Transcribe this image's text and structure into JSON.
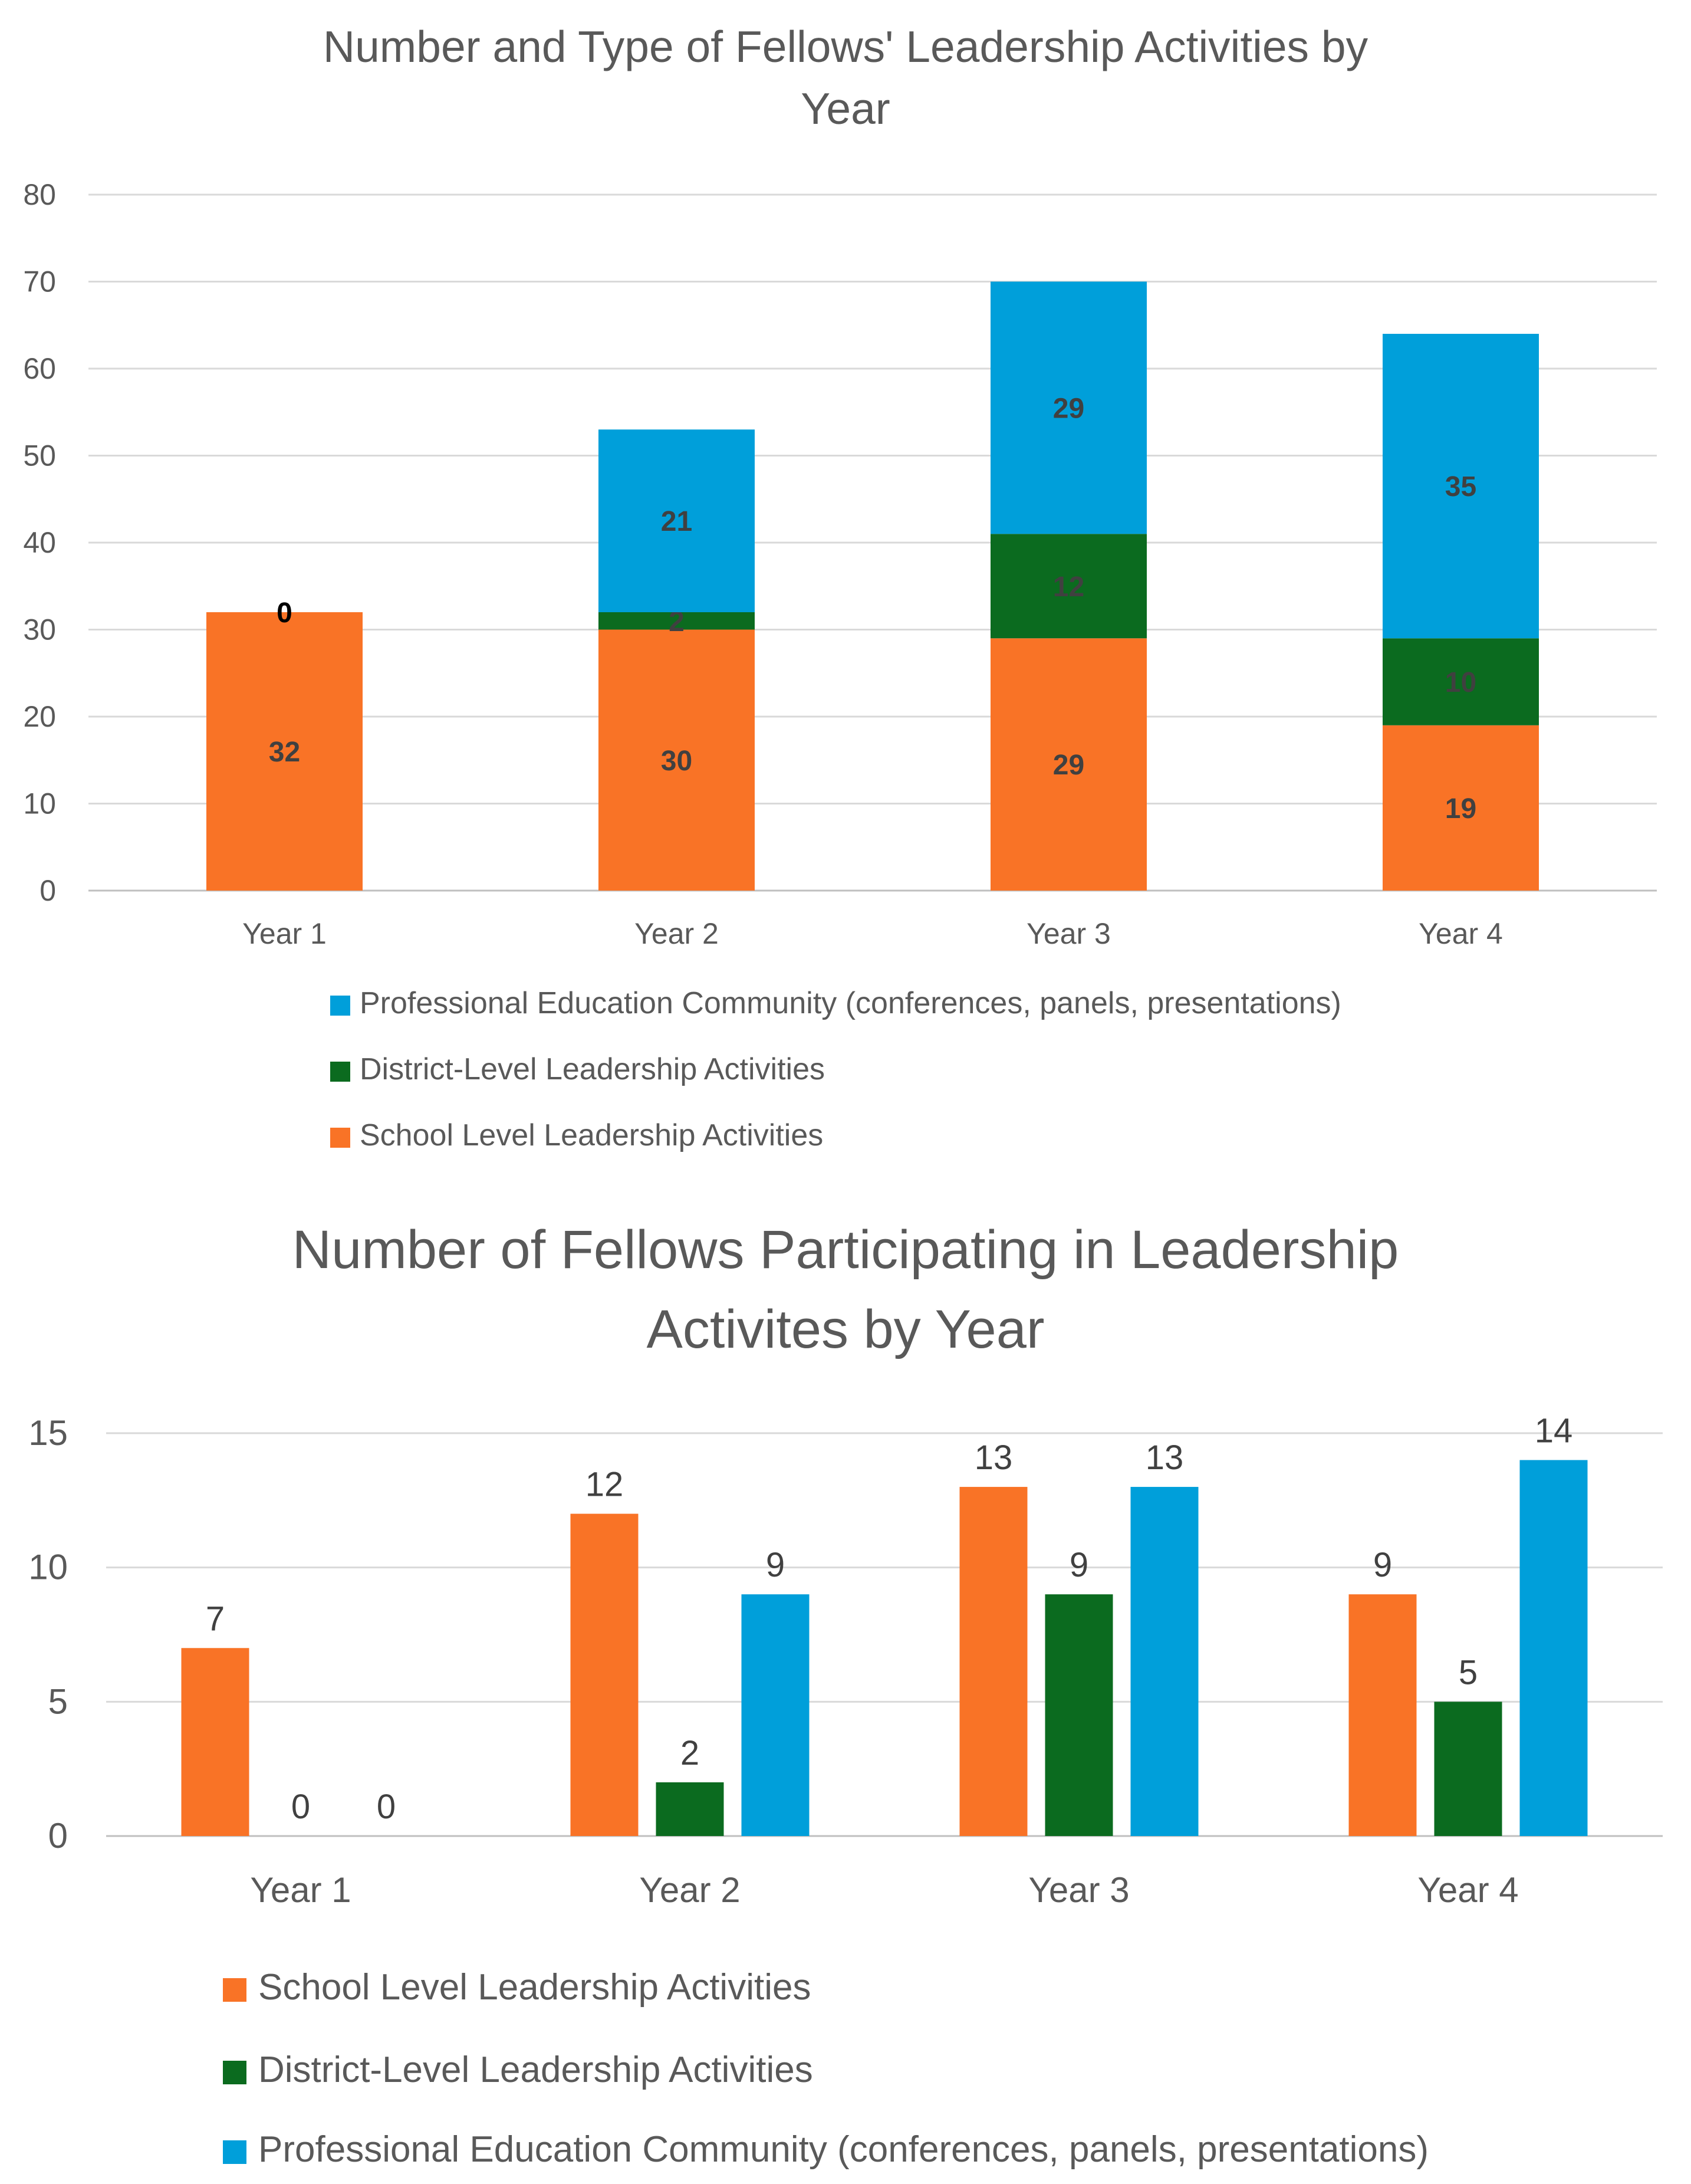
{
  "chart_data": [
    {
      "type": "bar",
      "stacked": true,
      "title": "Number and Type of Fellows' Leadership Activities by Year",
      "categories": [
        "Year 1",
        "Year 2",
        "Year 3",
        "Year 4"
      ],
      "ylim": [
        0,
        80
      ],
      "yticks": [
        0,
        10,
        20,
        30,
        40,
        50,
        60,
        70,
        80
      ],
      "grid": true,
      "legend_position": "bottom",
      "series": [
        {
          "name": "School Level Leadership Activities",
          "color": "#f97326",
          "values": [
            32,
            30,
            29,
            19
          ]
        },
        {
          "name": "District-Level Leadership Activities",
          "color": "#0b6b1f",
          "values": [
            0,
            2,
            12,
            10
          ]
        },
        {
          "name": "Professional Education Community (conferences, panels, presentations)",
          "color": "#009fda",
          "values": [
            0,
            21,
            29,
            35
          ]
        }
      ],
      "legend_order": [
        2,
        1,
        0
      ]
    },
    {
      "type": "bar",
      "stacked": false,
      "title": "Number of Fellows Participating in Leadership Activites by Year",
      "categories": [
        "Year 1",
        "Year 2",
        "Year 3",
        "Year 4"
      ],
      "ylim": [
        0,
        15
      ],
      "yticks": [
        0,
        5,
        10,
        15
      ],
      "grid": true,
      "legend_position": "bottom",
      "series": [
        {
          "name": "School Level Leadership Activities",
          "color": "#f97326",
          "values": [
            7,
            12,
            13,
            9
          ]
        },
        {
          "name": "District-Level Leadership Activities",
          "color": "#0b6b1f",
          "values": [
            0,
            2,
            9,
            5
          ]
        },
        {
          "name": "Professional Education Community (conferences, panels, presentations)",
          "color": "#009fda",
          "values": [
            0,
            9,
            13,
            14
          ]
        }
      ],
      "legend_order": [
        0,
        1,
        2
      ]
    }
  ]
}
